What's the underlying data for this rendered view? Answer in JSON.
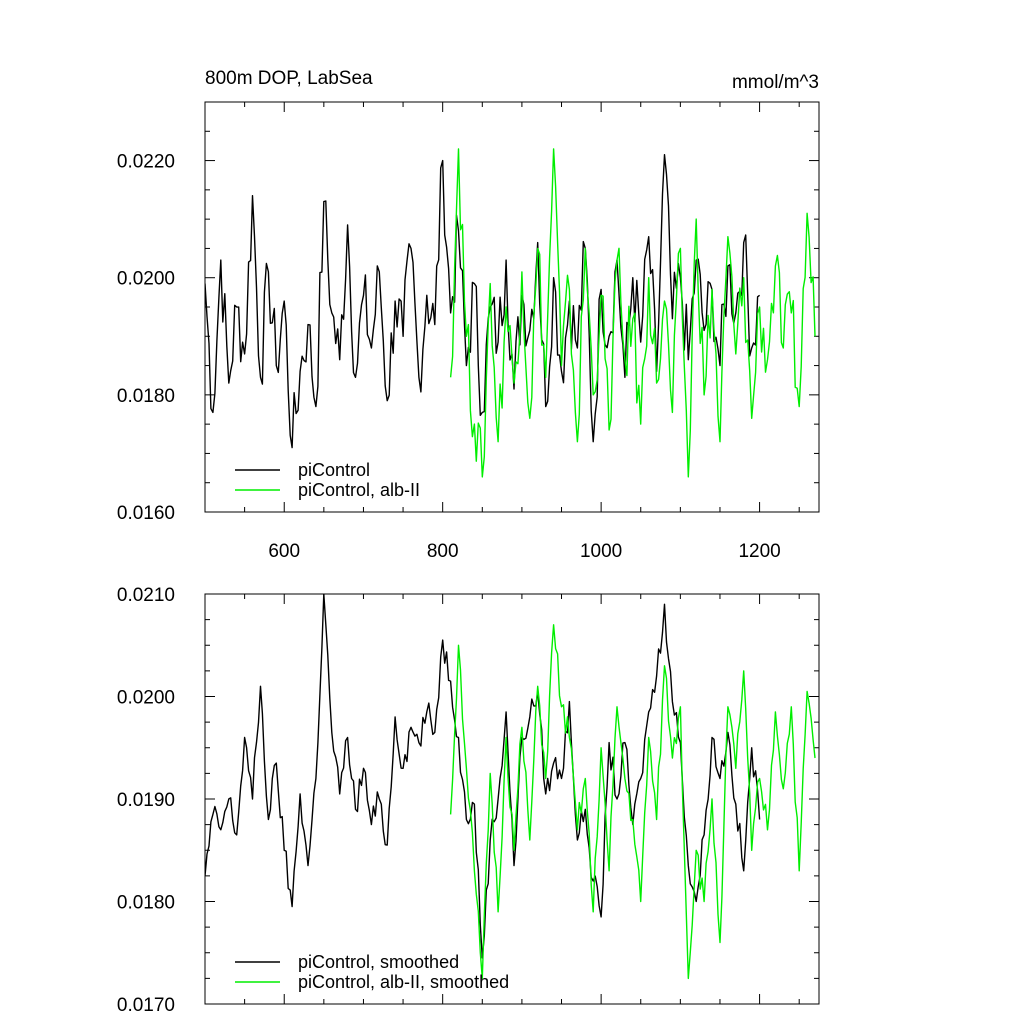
{
  "chart_data": [
    {
      "type": "line",
      "title": "800m DOP, LabSea",
      "units": "mmol/m^3",
      "xlim": [
        500,
        1275
      ],
      "ylim": [
        0.016,
        0.023
      ],
      "x_ticks": [
        600,
        800,
        1000,
        1200
      ],
      "x_tick_labels": [
        "600",
        "800",
        "1000",
        "1200"
      ],
      "y_ticks": [
        0.016,
        0.018,
        0.02,
        0.022
      ],
      "y_tick_labels": [
        "0.0160",
        "0.0180",
        "0.0200",
        "0.0220"
      ],
      "grid": false,
      "legend_position": "bottom-left",
      "series": [
        {
          "name": "piControl",
          "color": "#000000",
          "x": [
            500,
            510,
            520,
            530,
            540,
            550,
            560,
            570,
            580,
            590,
            600,
            610,
            620,
            630,
            640,
            650,
            660,
            670,
            680,
            690,
            700,
            710,
            720,
            730,
            740,
            750,
            760,
            770,
            780,
            790,
            800,
            810,
            820,
            830,
            840,
            850,
            860,
            870,
            880,
            890,
            900,
            910,
            920,
            930,
            940,
            950,
            960,
            970,
            980,
            990,
            1000,
            1010,
            1020,
            1030,
            1040,
            1050,
            1060,
            1070,
            1080,
            1090,
            1100,
            1110,
            1120,
            1130,
            1140,
            1150,
            1160,
            1170,
            1180,
            1190,
            1200
          ],
          "values": [
            0.0199,
            0.0177,
            0.0203,
            0.0182,
            0.0195,
            0.0187,
            0.0214,
            0.0183,
            0.0201,
            0.0185,
            0.0196,
            0.0171,
            0.0184,
            0.0192,
            0.0178,
            0.0213,
            0.0194,
            0.0186,
            0.0209,
            0.0183,
            0.0197,
            0.0188,
            0.0201,
            0.0179,
            0.0196,
            0.019,
            0.0205,
            0.0183,
            0.0197,
            0.0192,
            0.022,
            0.0194,
            0.0208,
            0.0185,
            0.0199,
            0.0177,
            0.0195,
            0.0189,
            0.0203,
            0.0181,
            0.0197,
            0.0191,
            0.0206,
            0.0178,
            0.02,
            0.0184,
            0.0196,
            0.0188,
            0.0205,
            0.0172,
            0.0198,
            0.019,
            0.0203,
            0.0183,
            0.02,
            0.0189,
            0.0207,
            0.0184,
            0.0221,
            0.0193,
            0.02,
            0.0186,
            0.0203,
            0.0191,
            0.0198,
            0.0185,
            0.0202,
            0.0194,
            0.0206,
            0.0188,
            0.0197
          ]
        },
        {
          "name": "piControl, alb-II",
          "color": "#00ee00",
          "x": [
            810,
            820,
            830,
            840,
            850,
            860,
            870,
            880,
            890,
            900,
            910,
            920,
            930,
            940,
            950,
            960,
            970,
            980,
            990,
            1000,
            1010,
            1020,
            1030,
            1040,
            1050,
            1060,
            1070,
            1080,
            1090,
            1100,
            1110,
            1120,
            1130,
            1140,
            1150,
            1160,
            1170,
            1180,
            1190,
            1200,
            1210,
            1220,
            1230,
            1240,
            1250,
            1260,
            1270
          ],
          "values": [
            0.0183,
            0.0222,
            0.019,
            0.0175,
            0.0166,
            0.0199,
            0.0172,
            0.0195,
            0.0182,
            0.0201,
            0.0176,
            0.0205,
            0.0183,
            0.0222,
            0.0185,
            0.0198,
            0.0172,
            0.0205,
            0.018,
            0.0197,
            0.0174,
            0.0203,
            0.0186,
            0.0193,
            0.0175,
            0.02,
            0.0182,
            0.0196,
            0.0177,
            0.0205,
            0.0166,
            0.021,
            0.018,
            0.0198,
            0.0172,
            0.0207,
            0.0187,
            0.02,
            0.0176,
            0.0195,
            0.0186,
            0.0202,
            0.0188,
            0.0194,
            0.0178,
            0.0211,
            0.019
          ]
        }
      ]
    },
    {
      "type": "line",
      "xlim": [
        500,
        1275
      ],
      "ylim": [
        0.017,
        0.021
      ],
      "x_ticks": [
        600,
        800,
        1000,
        1200
      ],
      "y_ticks": [
        0.017,
        0.018,
        0.019,
        0.02,
        0.021
      ],
      "y_tick_labels": [
        "0.0170",
        "0.0180",
        "0.0190",
        "0.0200",
        "0.0210"
      ],
      "grid": false,
      "legend_position": "bottom-left",
      "series": [
        {
          "name": "piControl, smoothed",
          "color": "#000000",
          "x": [
            500,
            510,
            520,
            530,
            540,
            550,
            560,
            570,
            580,
            590,
            600,
            610,
            620,
            630,
            640,
            650,
            660,
            670,
            680,
            690,
            700,
            710,
            720,
            730,
            740,
            750,
            760,
            770,
            780,
            790,
            800,
            810,
            820,
            830,
            840,
            850,
            860,
            870,
            880,
            890,
            900,
            910,
            920,
            930,
            940,
            950,
            960,
            970,
            980,
            990,
            1000,
            1010,
            1020,
            1030,
            1040,
            1050,
            1060,
            1070,
            1080,
            1090,
            1100,
            1110,
            1120,
            1130,
            1140,
            1150,
            1160,
            1170,
            1180,
            1190,
            1200
          ],
          "values": [
            0.01825,
            0.01885,
            0.0187,
            0.019,
            0.01865,
            0.0196,
            0.019,
            0.0201,
            0.0188,
            0.01935,
            0.0185,
            0.01795,
            0.01905,
            0.01835,
            0.0192,
            0.021,
            0.01965,
            0.01905,
            0.0196,
            0.0189,
            0.0193,
            0.01875,
            0.019,
            0.01855,
            0.0198,
            0.0193,
            0.0197,
            0.01955,
            0.01985,
            0.01965,
            0.02055,
            0.02015,
            0.0196,
            0.0188,
            0.01895,
            0.01745,
            0.0186,
            0.019,
            0.01985,
            0.01835,
            0.0196,
            0.0198,
            0.02005,
            0.01905,
            0.01935,
            0.0192,
            0.01995,
            0.0186,
            0.0189,
            0.0182,
            0.01785,
            0.01955,
            0.019,
            0.01955,
            0.01875,
            0.0192,
            0.01985,
            0.0202,
            0.0209,
            0.01995,
            0.01955,
            0.01835,
            0.018,
            0.01865,
            0.0196,
            0.0192,
            0.01965,
            0.01895,
            0.0183,
            0.0195,
            0.0188
          ]
        },
        {
          "name": "piControl, alb-II, smoothed",
          "color": "#00ee00",
          "x": [
            810,
            820,
            830,
            840,
            850,
            860,
            870,
            880,
            890,
            900,
            910,
            920,
            930,
            940,
            950,
            960,
            970,
            980,
            990,
            1000,
            1010,
            1020,
            1030,
            1040,
            1050,
            1060,
            1070,
            1080,
            1090,
            1100,
            1110,
            1120,
            1130,
            1140,
            1150,
            1160,
            1170,
            1180,
            1190,
            1200,
            1210,
            1220,
            1230,
            1240,
            1250,
            1260,
            1270
          ],
          "values": [
            0.01885,
            0.0205,
            0.0193,
            0.0183,
            0.01725,
            0.01925,
            0.0179,
            0.0196,
            0.0185,
            0.0197,
            0.0186,
            0.0201,
            0.0192,
            0.0207,
            0.0199,
            0.0196,
            0.0187,
            0.0192,
            0.0179,
            0.0195,
            0.0183,
            0.0199,
            0.0192,
            0.0188,
            0.018,
            0.0196,
            0.0188,
            0.0203,
            0.0194,
            0.0199,
            0.01725,
            0.0185,
            0.018,
            0.019,
            0.0176,
            0.0199,
            0.0193,
            0.02025,
            0.0185,
            0.0192,
            0.0187,
            0.01985,
            0.0191,
            0.0199,
            0.0183,
            0.02005,
            0.0194
          ]
        }
      ]
    }
  ]
}
